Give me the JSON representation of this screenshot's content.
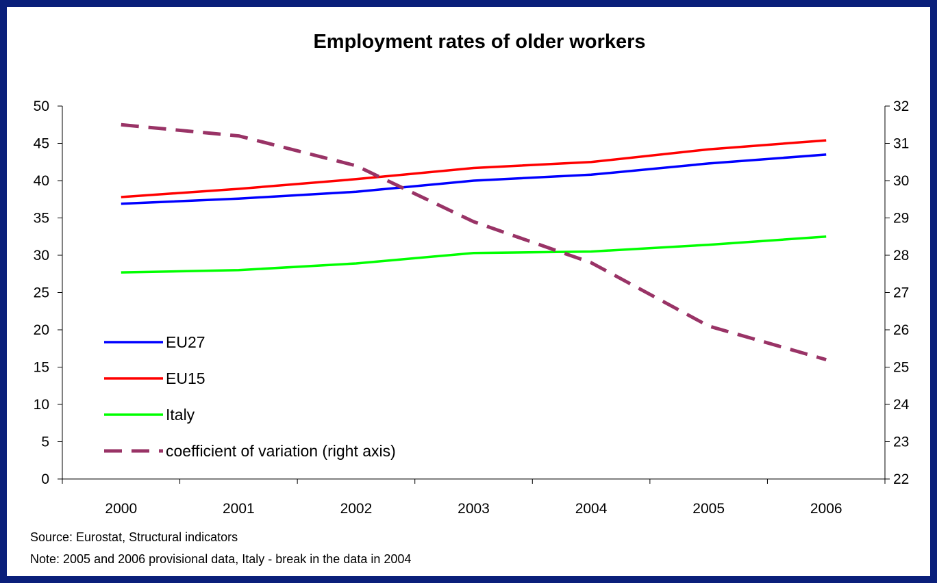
{
  "chart_data": {
    "type": "line",
    "title": "Employment rates of older workers",
    "categories": [
      "2000",
      "2001",
      "2002",
      "2003",
      "2004",
      "2005",
      "2006"
    ],
    "y_left": {
      "range": [
        0,
        50
      ],
      "ticks": [
        0,
        5,
        10,
        15,
        20,
        25,
        30,
        35,
        40,
        45,
        50
      ]
    },
    "y_right": {
      "range": [
        22,
        32
      ],
      "ticks": [
        22,
        23,
        24,
        25,
        26,
        27,
        28,
        29,
        30,
        31,
        32
      ]
    },
    "grid": false,
    "legend_placement": "bottom-left",
    "series": [
      {
        "name": "EU27",
        "axis": "left",
        "color": "#0000ff",
        "dashed": false,
        "values": [
          36.9,
          37.6,
          38.5,
          40.0,
          40.8,
          42.3,
          43.5
        ]
      },
      {
        "name": "EU15",
        "axis": "left",
        "color": "#ff0000",
        "dashed": false,
        "values": [
          37.8,
          38.9,
          40.2,
          41.7,
          42.5,
          44.2,
          45.4
        ]
      },
      {
        "name": "Italy",
        "axis": "left",
        "color": "#00ff00",
        "dashed": false,
        "values": [
          27.7,
          28.0,
          28.9,
          30.3,
          30.5,
          31.4,
          32.5
        ]
      },
      {
        "name": "coefficient of variation (right axis)",
        "axis": "right",
        "color": "#993366",
        "dashed": true,
        "values": [
          31.5,
          31.2,
          30.4,
          28.9,
          27.8,
          26.1,
          25.2
        ]
      }
    ]
  },
  "notes": {
    "source": "Source: Eurostat, Structural indicators",
    "note": "Note: 2005 and 2006 provisional data, Italy - break in the data in 2004"
  }
}
